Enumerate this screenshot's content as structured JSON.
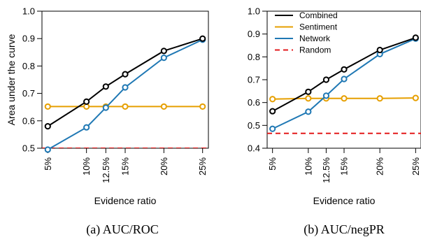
{
  "colors": {
    "combined": "#000000",
    "sentiment": "#e69f00",
    "network": "#1f78b4",
    "random": "#e31a1c"
  },
  "chart_data": [
    {
      "type": "line",
      "caption": "(a)  AUC/ROC",
      "xlabel": "Evidence ratio",
      "ylabel": "Area under the curve",
      "x": [
        5,
        10,
        12.5,
        15,
        20,
        25
      ],
      "x_tick_labels": [
        "5%",
        "10%",
        "12.5%",
        "15%",
        "20%",
        "25%"
      ],
      "ylim": [
        0.5,
        1.0
      ],
      "y_ticks": [
        0.5,
        0.6,
        0.7,
        0.8,
        0.9,
        1.0
      ],
      "y_tick_labels": [
        "0.5",
        "0.6",
        "0.7",
        "0.8",
        "0.9",
        "1.0"
      ],
      "legend": null,
      "series": [
        {
          "key": "combined",
          "values": [
            0.58,
            0.67,
            0.725,
            0.77,
            0.855,
            0.9
          ],
          "style": "solid-markers"
        },
        {
          "key": "sentiment",
          "values": [
            0.652,
            0.652,
            0.652,
            0.652,
            0.652,
            0.652
          ],
          "style": "solid-markers"
        },
        {
          "key": "network",
          "values": [
            0.495,
            0.576,
            0.648,
            0.722,
            0.83,
            0.896
          ],
          "style": "solid-markers"
        },
        {
          "key": "random",
          "values": [
            0.5,
            0.5,
            0.5,
            0.5,
            0.5,
            0.5
          ],
          "style": "dashed"
        }
      ]
    },
    {
      "type": "line",
      "caption": "(b)  AUC/negPR",
      "xlabel": "Evidence ratio",
      "ylabel": "",
      "x": [
        5,
        10,
        12.5,
        15,
        20,
        25
      ],
      "x_tick_labels": [
        "5%",
        "10%",
        "12.5%",
        "15%",
        "20%",
        "25%"
      ],
      "ylim": [
        0.4,
        1.0
      ],
      "y_ticks": [
        0.4,
        0.5,
        0.6,
        0.7,
        0.8,
        0.9,
        1.0
      ],
      "y_tick_labels": [
        "0.4",
        "0.5",
        "0.6",
        "0.7",
        "0.8",
        "0.9",
        "1.0"
      ],
      "legend": "top-left",
      "series": [
        {
          "key": "combined",
          "name": "Combined",
          "values": [
            0.562,
            0.647,
            0.7,
            0.745,
            0.83,
            0.884
          ],
          "style": "solid-markers"
        },
        {
          "key": "sentiment",
          "name": "Sentiment",
          "values": [
            0.615,
            0.618,
            0.618,
            0.618,
            0.618,
            0.62
          ],
          "style": "solid-markers"
        },
        {
          "key": "network",
          "name": "Network",
          "values": [
            0.485,
            0.56,
            0.63,
            0.703,
            0.812,
            0.88
          ],
          "style": "solid-markers"
        },
        {
          "key": "random",
          "name": "Random",
          "values": [
            0.465,
            0.465,
            0.465,
            0.465,
            0.465,
            0.465
          ],
          "style": "dashed"
        }
      ]
    }
  ]
}
